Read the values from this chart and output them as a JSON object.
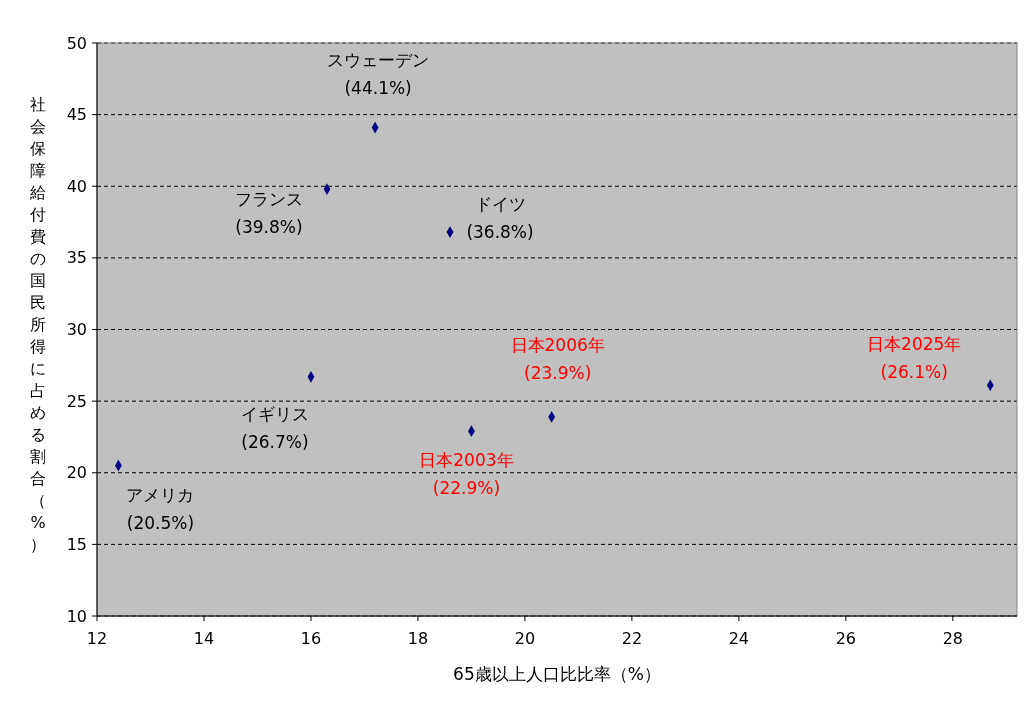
{
  "chart_data": {
    "type": "scatter",
    "xlabel": "65歳以上人口比比率（%）",
    "ylabel": "社会保障給付費の国民所得に占める割合（%）",
    "series": [
      {
        "color": "#000080",
        "x": [
          12.4,
          16.0,
          16.3,
          17.2,
          18.6
        ],
        "values": [
          20.5,
          26.7,
          39.8,
          44.1,
          36.8
        ],
        "value_labels": [
          "アメリカ\n(20.5%)",
          "イギリス\n(26.7%)",
          "フランス\n(39.8%)",
          "スウェーデン\n(44.1%)",
          "ドイツ\n(36.8%)"
        ]
      },
      {
        "color": "#000080",
        "x": [
          19.0,
          20.5,
          28.7
        ],
        "values": [
          22.9,
          23.9,
          26.1
        ],
        "value_labels": [
          "日本2003年\n(22.9%)",
          "日本2006年\n(23.9%)",
          "日本2025年\n(26.1%)"
        ]
      }
    ],
    "marker": "diamond",
    "grid": "y",
    "xlim": [
      12,
      29.2
    ],
    "xticks": [
      12,
      14,
      16,
      18,
      20,
      22,
      24,
      26,
      28
    ],
    "ylim": [
      10,
      50
    ],
    "yticks": [
      10,
      15,
      20,
      25,
      30,
      35,
      40,
      45,
      50
    ]
  }
}
